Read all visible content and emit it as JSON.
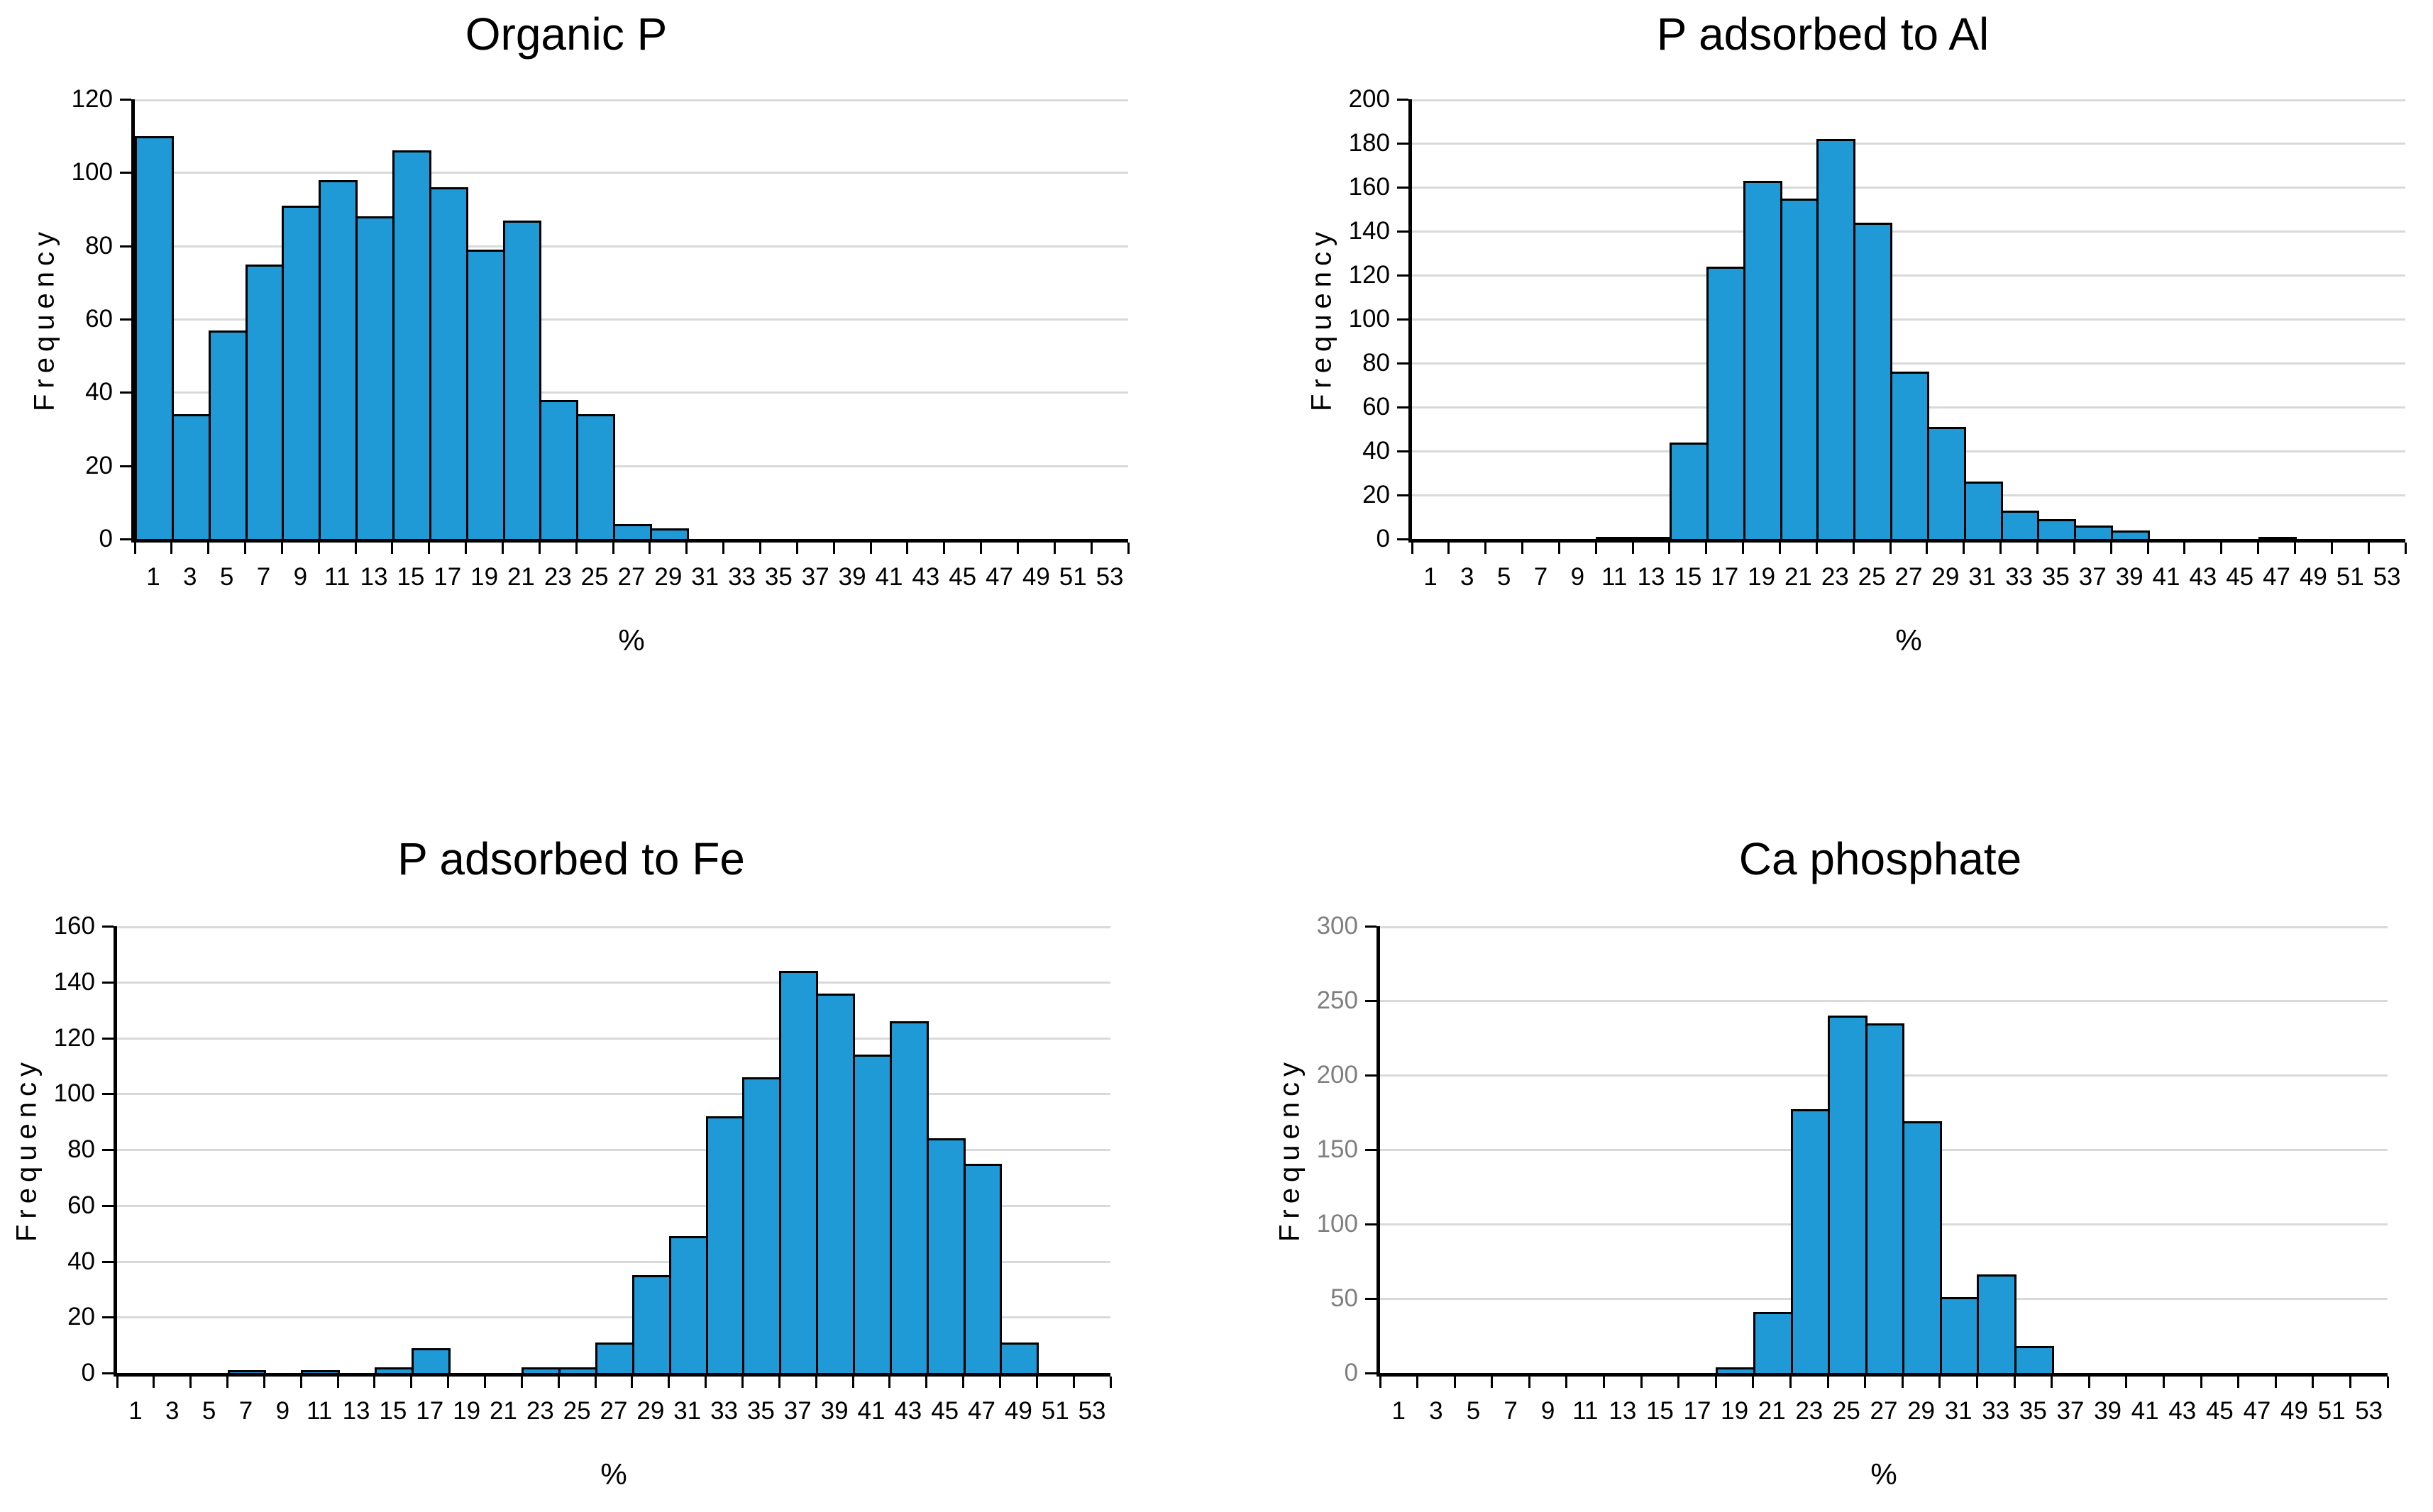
{
  "chart_data": [
    {
      "type": "bar",
      "title": "Organic P",
      "xlabel": "%",
      "ylabel": "Frequency",
      "categories": [
        "1",
        "3",
        "5",
        "7",
        "9",
        "11",
        "13",
        "15",
        "17",
        "19",
        "21",
        "23",
        "25",
        "27",
        "29",
        "31",
        "33",
        "35",
        "37",
        "39",
        "41",
        "43",
        "45",
        "47",
        "49",
        "51",
        "53"
      ],
      "values": [
        110,
        34,
        57,
        75,
        91,
        98,
        88,
        106,
        96,
        79,
        87,
        38,
        34,
        4,
        3,
        0,
        0,
        0,
        0,
        0,
        0,
        0,
        0,
        0,
        0,
        0,
        0
      ],
      "ylim": [
        0,
        120
      ],
      "ytick_step": 20,
      "grid": true,
      "legend": "none",
      "ytick_label_color": "#000000"
    },
    {
      "type": "bar",
      "title": "P adsorbed to Al",
      "xlabel": "%",
      "ylabel": "Frequency",
      "categories": [
        "1",
        "3",
        "5",
        "7",
        "9",
        "11",
        "13",
        "15",
        "17",
        "19",
        "21",
        "23",
        "25",
        "27",
        "29",
        "31",
        "33",
        "35",
        "37",
        "39",
        "41",
        "43",
        "45",
        "47",
        "49",
        "51",
        "53"
      ],
      "values": [
        0,
        0,
        0,
        0,
        0,
        1,
        1,
        44,
        124,
        163,
        155,
        182,
        144,
        76,
        51,
        26,
        13,
        9,
        6,
        4,
        0,
        0,
        0,
        1,
        0,
        0,
        0
      ],
      "ylim": [
        0,
        200
      ],
      "ytick_step": 20,
      "grid": true,
      "legend": "none",
      "ytick_label_color": "#000000"
    },
    {
      "type": "bar",
      "title": "P adsorbed to Fe",
      "xlabel": "%",
      "ylabel": "Frequency",
      "categories": [
        "1",
        "3",
        "5",
        "7",
        "9",
        "11",
        "13",
        "15",
        "17",
        "19",
        "21",
        "23",
        "25",
        "27",
        "29",
        "31",
        "33",
        "35",
        "37",
        "39",
        "41",
        "43",
        "45",
        "47",
        "49",
        "51",
        "53"
      ],
      "values": [
        0,
        0,
        0,
        1,
        0,
        1,
        0,
        2,
        9,
        0,
        0,
        2,
        2,
        11,
        35,
        49,
        92,
        106,
        144,
        136,
        114,
        126,
        84,
        75,
        11,
        0,
        0
      ],
      "ylim": [
        0,
        160
      ],
      "ytick_step": 20,
      "grid": true,
      "legend": "none",
      "ytick_label_color": "#000000"
    },
    {
      "type": "bar",
      "title": "Ca phosphate",
      "xlabel": "%",
      "ylabel": "Frequency",
      "categories": [
        "1",
        "3",
        "5",
        "7",
        "9",
        "11",
        "13",
        "15",
        "17",
        "19",
        "21",
        "23",
        "25",
        "27",
        "29",
        "31",
        "33",
        "35",
        "37",
        "39",
        "41",
        "43",
        "45",
        "47",
        "49",
        "51",
        "53"
      ],
      "values": [
        0,
        0,
        0,
        0,
        0,
        0,
        0,
        0,
        0,
        4,
        41,
        177,
        240,
        235,
        169,
        51,
        66,
        18,
        0,
        0,
        0,
        0,
        0,
        0,
        0,
        0,
        0
      ],
      "ylim": [
        0,
        300
      ],
      "ytick_step": 50,
      "grid": true,
      "legend": "none",
      "ytick_label_color": "#7F7F7F"
    }
  ],
  "colors": {
    "bar_fill": "#209AD7",
    "bar_border": "#000000",
    "gridline": "#D9D9D9",
    "axis": "#000000",
    "text": "#000000"
  }
}
